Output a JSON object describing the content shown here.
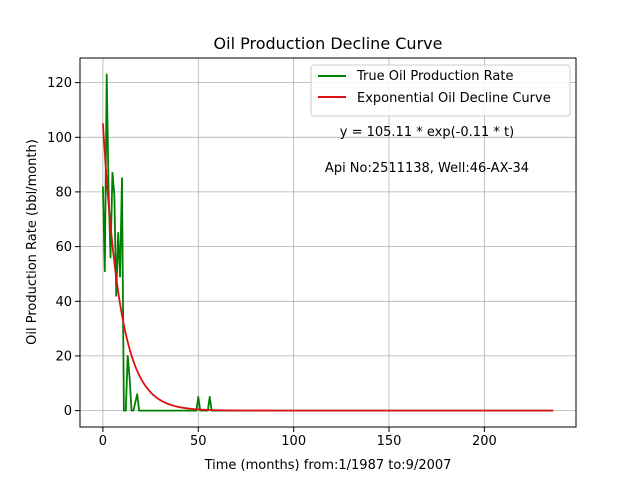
{
  "chart_data": {
    "type": "line",
    "title": "Oil Production Decline Curve",
    "xlabel": "Time (months) from:1/1987 to:9/2007",
    "ylabel": "Oil Production Rate (bbl/month)",
    "xlim": [
      -12,
      248
    ],
    "ylim": [
      -6,
      129
    ],
    "xticks": [
      0,
      50,
      100,
      150,
      200
    ],
    "yticks": [
      0,
      20,
      40,
      60,
      80,
      100,
      120
    ],
    "grid": true,
    "legend_position": "top-right",
    "annotations": [
      "y = 105.11 * exp(-0.11 * t)",
      "Api No:2511138, Well:46-AX-34"
    ],
    "series": [
      {
        "name": "True Oil Production Rate",
        "color": "#008000",
        "kind": "observed",
        "x": [
          0,
          1,
          2,
          3,
          4,
          5,
          6,
          7,
          8,
          9,
          10,
          11,
          12,
          13,
          14,
          15,
          16,
          17,
          18,
          19,
          20,
          49,
          50,
          51,
          55,
          56,
          57,
          58,
          236
        ],
        "y": [
          82,
          51,
          123,
          80,
          56,
          87,
          79,
          42,
          65,
          49,
          85,
          0,
          0,
          20,
          12,
          0,
          0,
          3,
          6,
          0,
          0,
          0,
          5,
          0,
          0,
          5,
          0,
          0,
          0
        ]
      },
      {
        "name": "Exponential Oil Decline Curve",
        "color": "#dd1111",
        "kind": "exponential",
        "a": 105.11,
        "b": 0.11,
        "x_start": 0,
        "x_end": 236
      }
    ]
  }
}
